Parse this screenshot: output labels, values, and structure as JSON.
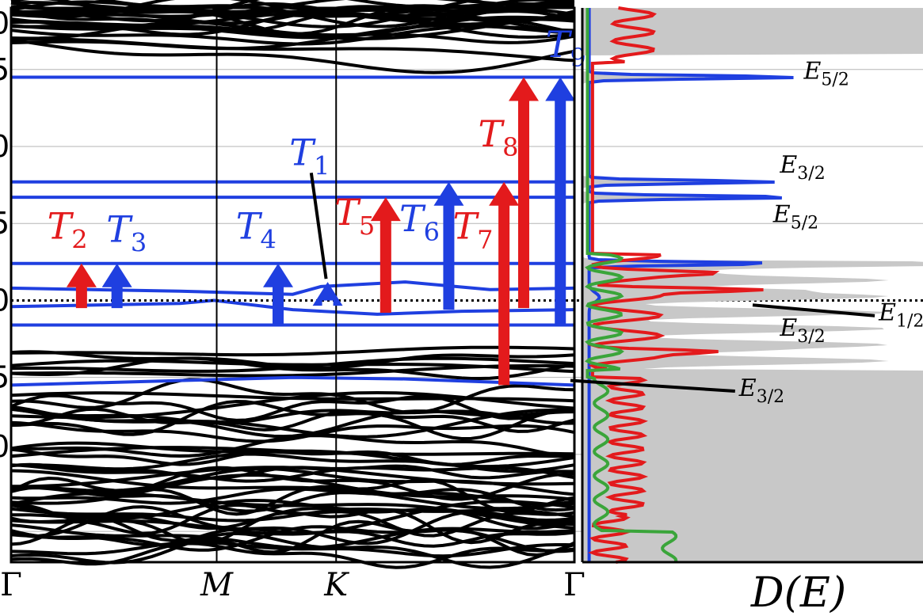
{
  "chart_data": [
    {
      "type": "line",
      "panel": "band-structure",
      "title": "",
      "xlabel": "",
      "ylabel": "",
      "x_ticks": [
        "Γ",
        "M",
        "K",
        "Γ"
      ],
      "y_tick_labels": [
        "0",
        "5",
        "0",
        "5",
        "0",
        "5",
        "0"
      ],
      "ylim": [
        -1.7,
        1.9
      ],
      "grid": "horizontal",
      "fermi_level": 0.0,
      "colors": {
        "bulk": "#000000",
        "defect": "#1f3fe0",
        "spin_flip": "#e31a1c"
      },
      "defect_levels": [
        {
          "type": "flat",
          "y": 1.45
        },
        {
          "type": "flat",
          "y": 0.77
        },
        {
          "type": "flat",
          "y": 0.67
        },
        {
          "type": "flat",
          "y": 0.24
        },
        {
          "type": "dispersive",
          "points": [
            [
              0,
              0.08
            ],
            [
              0.3,
              0.06
            ],
            [
              0.5,
              0.04
            ],
            [
              0.55,
              0.09
            ],
            [
              0.7,
              0.12
            ],
            [
              0.85,
              0.07
            ],
            [
              1.0,
              0.08
            ]
          ]
        },
        {
          "type": "dispersive",
          "points": [
            [
              0,
              -0.04
            ],
            [
              0.3,
              -0.02
            ],
            [
              0.36,
              0.0
            ],
            [
              0.5,
              -0.06
            ],
            [
              0.65,
              -0.09
            ],
            [
              0.8,
              -0.07
            ],
            [
              1.0,
              -0.06
            ]
          ]
        },
        {
          "type": "flat",
          "y": -0.16
        },
        {
          "type": "dispersive",
          "points": [
            [
              0,
              -0.55
            ],
            [
              0.3,
              -0.52
            ],
            [
              0.5,
              -0.5
            ],
            [
              0.7,
              -0.51
            ],
            [
              1.0,
              -0.55
            ]
          ]
        }
      ],
      "transitions": [
        {
          "label": "T",
          "sub": "1",
          "color": "blue",
          "x": 0.562,
          "from": 0.0,
          "to": 0.12,
          "ann_x": 0.53,
          "ann_y": 0.88
        },
        {
          "label": "T",
          "sub": "2",
          "color": "red",
          "x": 0.125,
          "from": -0.05,
          "to": 0.24,
          "ann_x": 0.1,
          "ann_y": 0.4
        },
        {
          "label": "T",
          "sub": "3",
          "color": "blue",
          "x": 0.188,
          "from": -0.05,
          "to": 0.24,
          "ann_x": 0.205,
          "ann_y": 0.38
        },
        {
          "label": "T",
          "sub": "4",
          "color": "blue",
          "x": 0.474,
          "from": -0.15,
          "to": 0.24,
          "ann_x": 0.435,
          "ann_y": 0.4
        },
        {
          "label": "T",
          "sub": "5",
          "color": "red",
          "x": 0.665,
          "from": -0.08,
          "to": 0.67,
          "ann_x": 0.61,
          "ann_y": 0.49
        },
        {
          "label": "T",
          "sub": "6",
          "color": "blue",
          "x": 0.777,
          "from": -0.06,
          "to": 0.77,
          "ann_x": 0.725,
          "ann_y": 0.45
        },
        {
          "label": "T",
          "sub": "7",
          "color": "red",
          "x": 0.875,
          "from": -0.55,
          "to": 0.77,
          "ann_x": 0.82,
          "ann_y": 0.4
        },
        {
          "label": "T",
          "sub": "8",
          "color": "red",
          "x": 0.91,
          "from": -0.05,
          "to": 1.45,
          "ann_x": 0.865,
          "ann_y": 1.0
        },
        {
          "label": "T",
          "sub": "9",
          "color": "blue",
          "x": 0.975,
          "from": -0.16,
          "to": 1.45,
          "ann_x": 0.985,
          "ann_y": 1.58
        }
      ]
    },
    {
      "type": "line",
      "panel": "density-of-states",
      "title": "",
      "xlabel": "D(E)",
      "ylabel": "",
      "ylim": [
        -1.7,
        1.9
      ],
      "colors": {
        "total": "#c8c8c8",
        "spin_up": "#1f3fe0",
        "spin_dn": "#e31a1c",
        "other": "#3aa53a"
      },
      "peaks": [
        {
          "series": "spin_up",
          "E": 1.45,
          "height": 0.62
        },
        {
          "series": "spin_up",
          "E": 0.77,
          "height": 0.55
        },
        {
          "series": "spin_up",
          "E": 0.67,
          "height": 0.62
        },
        {
          "series": "spin_up",
          "E": 0.24,
          "height": 0.55
        },
        {
          "series": "spin_dn",
          "E": 0.07,
          "height": 0.42
        },
        {
          "series": "spin_dn",
          "E": -0.33,
          "height": 0.25
        },
        {
          "series": "spin_dn",
          "E": 0.18,
          "height": 0.2
        }
      ],
      "annotations": [
        {
          "label": "E",
          "sub": "5/2",
          "x": 0.65,
          "E": 1.44,
          "line_to": null
        },
        {
          "label": "E",
          "sub": "3/2",
          "x": 0.58,
          "E": 0.83,
          "line_to": null
        },
        {
          "label": "E",
          "sub": "5/2",
          "x": 0.56,
          "E": 0.51,
          "line_to": null
        },
        {
          "label": "E",
          "sub": "1/2",
          "x": 0.87,
          "E": -0.13,
          "line_from": [
            0.5,
            -0.03
          ]
        },
        {
          "label": "E",
          "sub": "3/2",
          "x": 0.58,
          "E": -0.23,
          "line_to": null
        },
        {
          "label": "E",
          "sub": "3/2",
          "x": 0.46,
          "E": -0.62,
          "line_from": [
            -0.04,
            -0.52
          ]
        }
      ]
    }
  ]
}
